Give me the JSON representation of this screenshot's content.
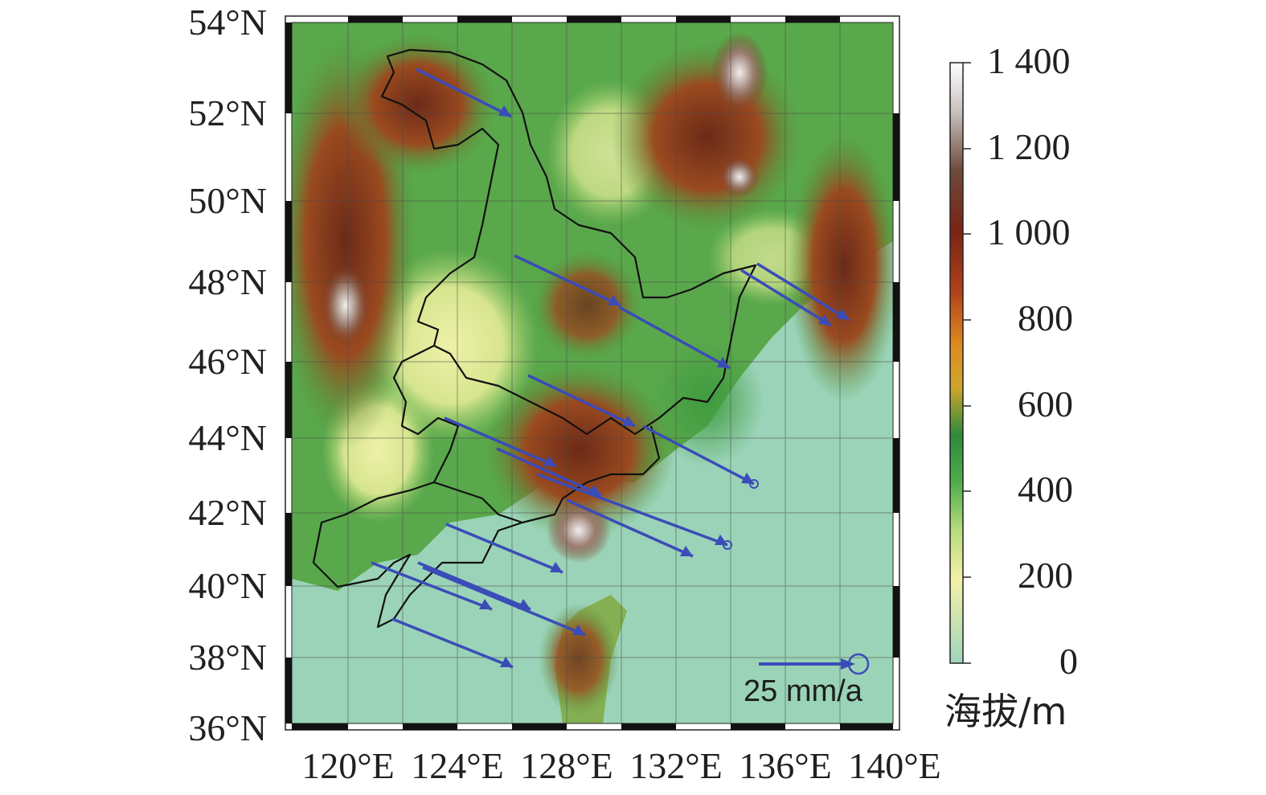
{
  "map": {
    "lat_labels": [
      "54°N",
      "52°N",
      "50°N",
      "48°N",
      "46°N",
      "44°N",
      "42°N",
      "40°N",
      "38°N",
      "36°N"
    ],
    "lon_labels": [
      "120°E",
      "124°E",
      "128°E",
      "132°E",
      "136°E",
      "140°E"
    ],
    "colors": {
      "sea": "#9ad3b7",
      "lowland": "#e2e59a",
      "plain": "#6fbf5a",
      "hill": "#2f8f3a",
      "mountain": "#8a3d1d",
      "high": "#5a2a1e",
      "peak": "#f2f2f2",
      "vector": "#3a4cb8",
      "border": "#111111"
    }
  },
  "colorbar": {
    "labels": [
      "1 400",
      "1 200",
      "1 000",
      "800",
      "600",
      "400",
      "200",
      "0"
    ],
    "unit": "海拔/m",
    "colors": [
      "#a8d9c0",
      "#f6f1a8",
      "#7fc36b",
      "#2e8a3a",
      "#e58a1e",
      "#8b2a14",
      "#6b3a2a",
      "#ffffff"
    ]
  },
  "legend": {
    "scale_label": "25 mm/a",
    "vector_icon": "arrow-with-error-circle"
  }
}
